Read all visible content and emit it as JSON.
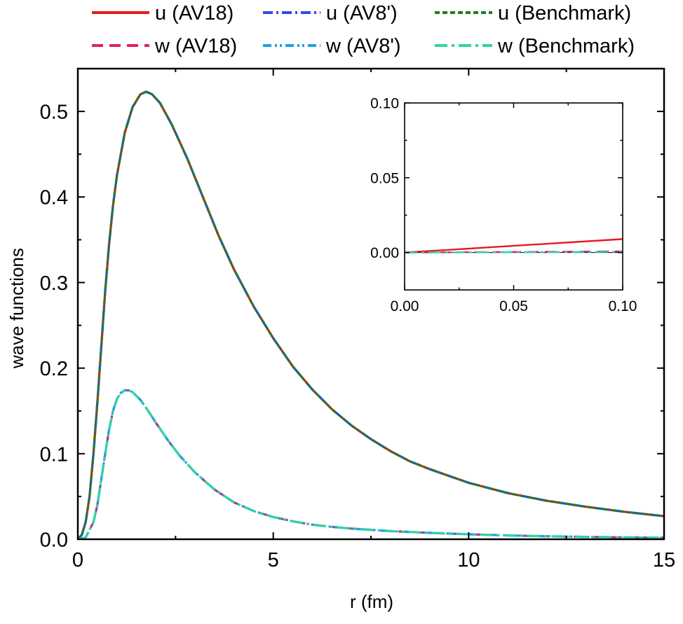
{
  "chart_data": [
    {
      "type": "line",
      "xlabel": "r (fm)",
      "ylabel": "wave functions",
      "xlim": [
        0,
        15
      ],
      "ylim": [
        0,
        0.55
      ],
      "xticks": [
        "0",
        "5",
        "10",
        "15"
      ],
      "yticks": [
        "0.0",
        "0.1",
        "0.2",
        "0.3",
        "0.4",
        "0.5"
      ],
      "legend_position": "top, above plot, two rows",
      "series": [
        {
          "name": "u (AV18)",
          "color": "#e8191c",
          "dash": "solid",
          "x": [
            0,
            0.1,
            0.2,
            0.3,
            0.4,
            0.5,
            0.6,
            0.7,
            0.8,
            0.9,
            1.0,
            1.2,
            1.4,
            1.6,
            1.75,
            1.9,
            2.1,
            2.4,
            2.8,
            3.2,
            3.6,
            4.0,
            4.5,
            5.0,
            5.5,
            6.0,
            6.5,
            7.0,
            7.5,
            8.0,
            8.5,
            9.0,
            10.0,
            11.0,
            12.0,
            13.0,
            14.0,
            15.0
          ],
          "y": [
            0.0,
            0.005,
            0.02,
            0.05,
            0.1,
            0.16,
            0.225,
            0.29,
            0.345,
            0.39,
            0.425,
            0.475,
            0.505,
            0.52,
            0.523,
            0.52,
            0.51,
            0.485,
            0.445,
            0.4,
            0.355,
            0.315,
            0.272,
            0.235,
            0.202,
            0.175,
            0.152,
            0.133,
            0.117,
            0.103,
            0.091,
            0.082,
            0.066,
            0.054,
            0.045,
            0.038,
            0.032,
            0.027
          ]
        },
        {
          "name": "u (AV8')",
          "color": "#2a4ee8",
          "dash": "dashdot",
          "x": [
            0,
            0.1,
            0.2,
            0.3,
            0.4,
            0.5,
            0.6,
            0.7,
            0.8,
            0.9,
            1.0,
            1.2,
            1.4,
            1.6,
            1.75,
            1.9,
            2.1,
            2.4,
            2.8,
            3.2,
            3.6,
            4.0,
            4.5,
            5.0,
            5.5,
            6.0,
            6.5,
            7.0,
            7.5,
            8.0,
            8.5,
            9.0,
            10.0,
            11.0,
            12.0,
            13.0,
            14.0,
            15.0
          ],
          "y": [
            0.0,
            0.005,
            0.02,
            0.05,
            0.1,
            0.16,
            0.225,
            0.29,
            0.345,
            0.39,
            0.425,
            0.475,
            0.505,
            0.52,
            0.523,
            0.52,
            0.51,
            0.485,
            0.445,
            0.4,
            0.355,
            0.315,
            0.272,
            0.235,
            0.202,
            0.175,
            0.152,
            0.133,
            0.117,
            0.103,
            0.091,
            0.082,
            0.066,
            0.054,
            0.045,
            0.038,
            0.032,
            0.027
          ]
        },
        {
          "name": "u (Benchmark)",
          "color": "#1e7f1e",
          "dash": "dashed",
          "x": [
            0,
            0.1,
            0.2,
            0.3,
            0.4,
            0.5,
            0.6,
            0.7,
            0.8,
            0.9,
            1.0,
            1.2,
            1.4,
            1.6,
            1.75,
            1.9,
            2.1,
            2.4,
            2.8,
            3.2,
            3.6,
            4.0,
            4.5,
            5.0,
            5.5,
            6.0,
            6.5,
            7.0,
            7.5,
            8.0,
            8.5,
            9.0,
            10.0,
            11.0,
            12.0,
            13.0,
            14.0,
            15.0
          ],
          "y": [
            0.0,
            0.005,
            0.02,
            0.05,
            0.1,
            0.16,
            0.225,
            0.29,
            0.345,
            0.39,
            0.425,
            0.475,
            0.505,
            0.52,
            0.523,
            0.52,
            0.51,
            0.485,
            0.445,
            0.4,
            0.355,
            0.315,
            0.272,
            0.235,
            0.202,
            0.175,
            0.152,
            0.133,
            0.117,
            0.103,
            0.091,
            0.082,
            0.066,
            0.054,
            0.045,
            0.038,
            0.032,
            0.027
          ]
        },
        {
          "name": "w (AV18)",
          "color": "#e0206f",
          "dash": "longdash",
          "x": [
            0,
            0.2,
            0.4,
            0.5,
            0.6,
            0.7,
            0.8,
            0.9,
            1.0,
            1.1,
            1.2,
            1.3,
            1.4,
            1.6,
            1.8,
            2.0,
            2.3,
            2.6,
            3.0,
            3.5,
            4.0,
            4.5,
            5.0,
            5.5,
            6.0,
            6.5,
            7.0,
            8.0,
            9.0,
            10.0,
            11.0,
            12.0,
            13.0,
            14.0,
            15.0
          ],
          "y": [
            0.0,
            0.002,
            0.02,
            0.04,
            0.07,
            0.1,
            0.128,
            0.15,
            0.164,
            0.171,
            0.174,
            0.174,
            0.172,
            0.163,
            0.15,
            0.136,
            0.116,
            0.098,
            0.078,
            0.058,
            0.043,
            0.033,
            0.026,
            0.021,
            0.017,
            0.0145,
            0.0125,
            0.0095,
            0.0075,
            0.0058,
            0.0045,
            0.0035,
            0.0028,
            0.0022,
            0.0018
          ]
        },
        {
          "name": "w (AV8')",
          "color": "#1fa0e6",
          "dash": "dashdotdot",
          "x": [
            0,
            0.2,
            0.4,
            0.5,
            0.6,
            0.7,
            0.8,
            0.9,
            1.0,
            1.1,
            1.2,
            1.3,
            1.4,
            1.6,
            1.8,
            2.0,
            2.3,
            2.6,
            3.0,
            3.5,
            4.0,
            4.5,
            5.0,
            5.5,
            6.0,
            6.5,
            7.0,
            8.0,
            9.0,
            10.0,
            11.0,
            12.0,
            13.0,
            14.0,
            15.0
          ],
          "y": [
            0.0,
            0.002,
            0.02,
            0.04,
            0.07,
            0.1,
            0.128,
            0.15,
            0.164,
            0.171,
            0.174,
            0.174,
            0.172,
            0.163,
            0.15,
            0.136,
            0.116,
            0.098,
            0.078,
            0.058,
            0.043,
            0.033,
            0.026,
            0.021,
            0.017,
            0.0145,
            0.0125,
            0.0095,
            0.0075,
            0.0058,
            0.0045,
            0.0035,
            0.0028,
            0.0022,
            0.0018
          ]
        },
        {
          "name": "w (Benchmark)",
          "color": "#2ed3a8",
          "dash": "dashdot-long",
          "x": [
            0,
            0.2,
            0.4,
            0.5,
            0.6,
            0.7,
            0.8,
            0.9,
            1.0,
            1.1,
            1.2,
            1.3,
            1.4,
            1.6,
            1.8,
            2.0,
            2.3,
            2.6,
            3.0,
            3.5,
            4.0,
            4.5,
            5.0,
            5.5,
            6.0,
            6.5,
            7.0,
            8.0,
            9.0,
            10.0,
            11.0,
            12.0,
            13.0,
            14.0,
            15.0
          ],
          "y": [
            0.0,
            0.002,
            0.02,
            0.04,
            0.07,
            0.1,
            0.128,
            0.15,
            0.164,
            0.171,
            0.174,
            0.174,
            0.172,
            0.163,
            0.15,
            0.136,
            0.116,
            0.098,
            0.078,
            0.058,
            0.043,
            0.033,
            0.026,
            0.021,
            0.017,
            0.0145,
            0.0125,
            0.0095,
            0.0075,
            0.0058,
            0.0045,
            0.0035,
            0.0028,
            0.0022,
            0.0018
          ]
        }
      ]
    },
    {
      "type": "line",
      "inset": true,
      "xlim": [
        0,
        0.1
      ],
      "ylim": [
        -0.025,
        0.1
      ],
      "xticks": [
        "0.00",
        "0.05",
        "0.10"
      ],
      "yticks": [
        "0.00",
        "0.05",
        "0.10"
      ],
      "series": [
        {
          "name": "u (AV18)",
          "color": "#e8191c",
          "dash": "solid",
          "x": [
            0,
            0.1
          ],
          "y": [
            0.0,
            0.009
          ]
        },
        {
          "name": "w (AV18)",
          "color": "#e0206f",
          "dash": "longdash",
          "x": [
            0,
            0.1
          ],
          "y": [
            0.0,
            0.0008
          ]
        },
        {
          "name": "w (Benchmark)",
          "color": "#2ed3a8",
          "dash": "dashdot-long",
          "x": [
            0,
            0.1
          ],
          "y": [
            0.0,
            0.0005
          ]
        }
      ]
    }
  ]
}
